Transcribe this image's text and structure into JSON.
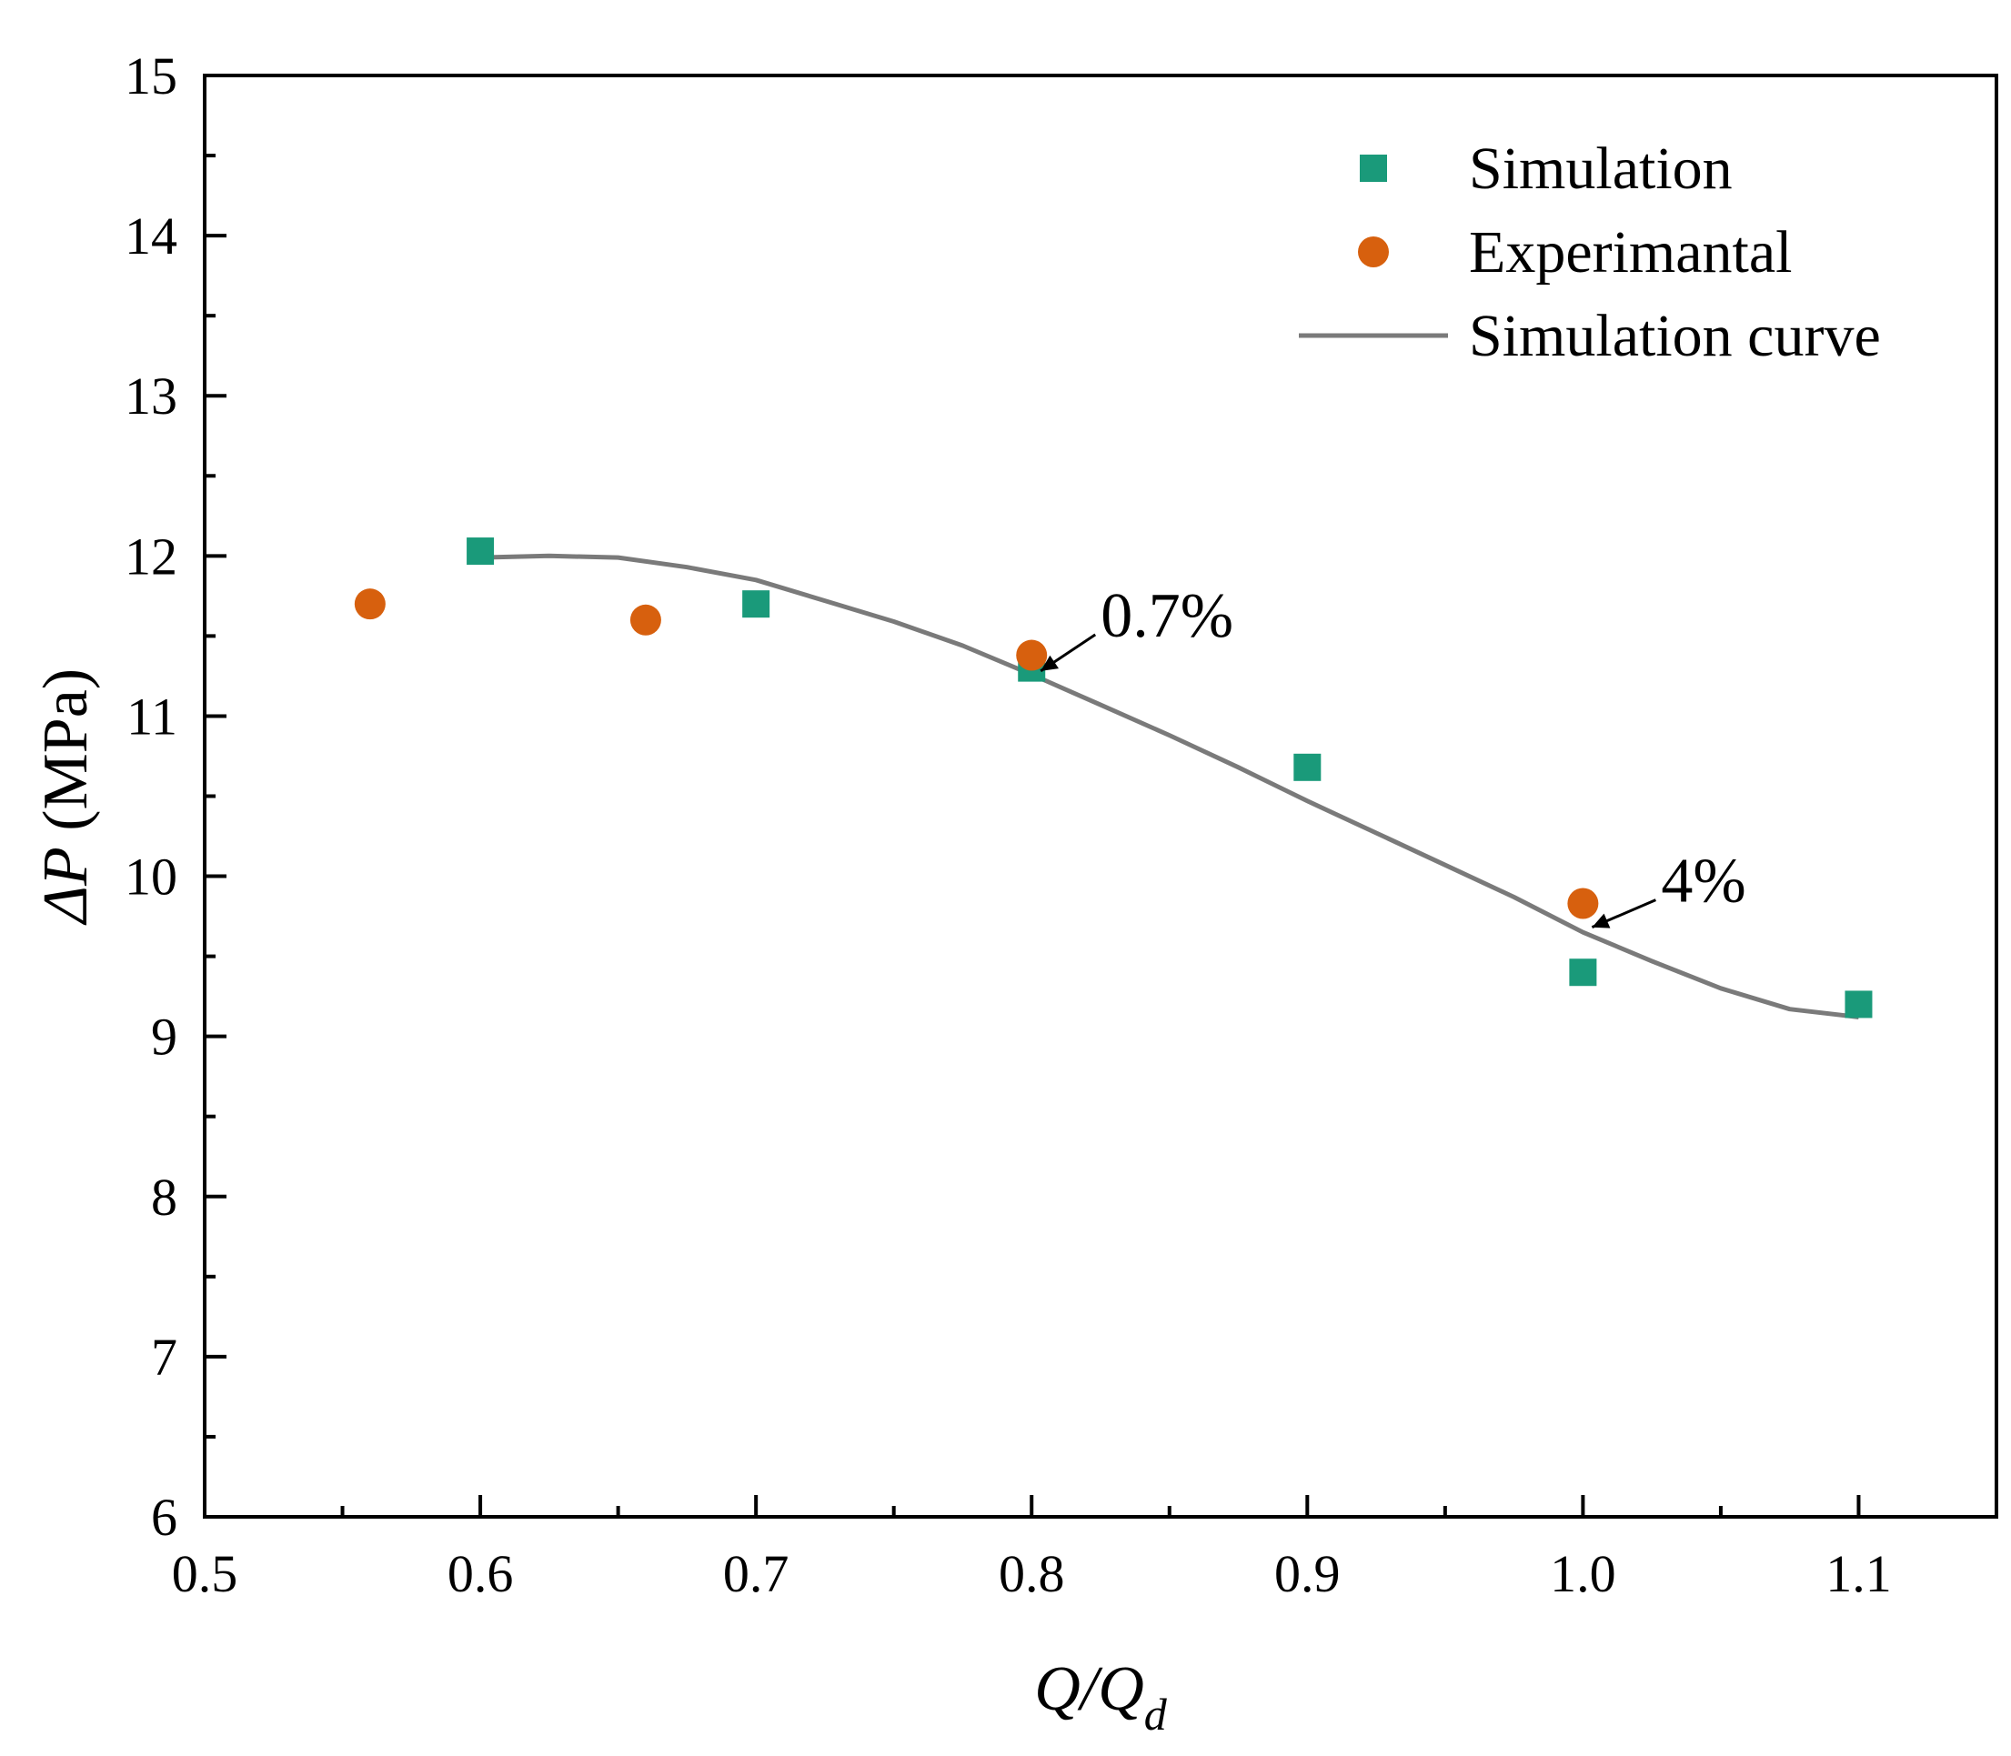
{
  "chart_data": {
    "type": "scatter",
    "title": "",
    "xlabel": {
      "main": "Q/Q",
      "sub": "d"
    },
    "ylabel": {
      "italic": "ΔP",
      "unit": " (MPa)"
    },
    "xlim": [
      0.5,
      1.15
    ],
    "ylim": [
      6,
      15
    ],
    "x_ticks": [
      "0.5",
      "0.6",
      "0.7",
      "0.8",
      "0.9",
      "1.0",
      "1.1"
    ],
    "x_tick_values": [
      0.5,
      0.6,
      0.7,
      0.8,
      0.9,
      1.0,
      1.1
    ],
    "y_ticks": [
      "6",
      "7",
      "8",
      "9",
      "10",
      "11",
      "12",
      "13",
      "14",
      "15"
    ],
    "y_tick_values": [
      6,
      7,
      8,
      9,
      10,
      11,
      12,
      13,
      14,
      15
    ],
    "grid": false,
    "legend_position": "top-right",
    "series": [
      {
        "name": "Simulation",
        "kind": "scatter",
        "marker": "square",
        "color": "#1a9a7a",
        "x": [
          0.6,
          0.7,
          0.8,
          0.9,
          1.0,
          1.1
        ],
        "y": [
          12.03,
          11.7,
          11.3,
          10.68,
          9.4,
          9.2
        ]
      },
      {
        "name": "Experimantal",
        "kind": "scatter",
        "marker": "circle",
        "color": "#d7600e",
        "x": [
          0.56,
          0.66,
          0.8,
          1.0
        ],
        "y": [
          11.7,
          11.6,
          11.38,
          9.83
        ]
      },
      {
        "name": "Simulation curve",
        "kind": "line",
        "color": "#7a7a7a",
        "x": [
          0.6,
          0.625,
          0.65,
          0.675,
          0.7,
          0.725,
          0.75,
          0.775,
          0.8,
          0.825,
          0.85,
          0.875,
          0.9,
          0.925,
          0.95,
          0.975,
          1.0,
          1.025,
          1.05,
          1.075,
          1.1
        ],
        "y": [
          11.99,
          12.0,
          11.99,
          11.93,
          11.85,
          11.72,
          11.59,
          11.44,
          11.26,
          11.07,
          10.88,
          10.68,
          10.47,
          10.27,
          10.07,
          9.87,
          9.65,
          9.47,
          9.3,
          9.17,
          9.12
        ]
      }
    ],
    "annotations": [
      {
        "text": "0.7%",
        "x": 0.8,
        "y": 11.27
      },
      {
        "text": "4%",
        "x": 1.0,
        "y": 9.67
      }
    ]
  }
}
